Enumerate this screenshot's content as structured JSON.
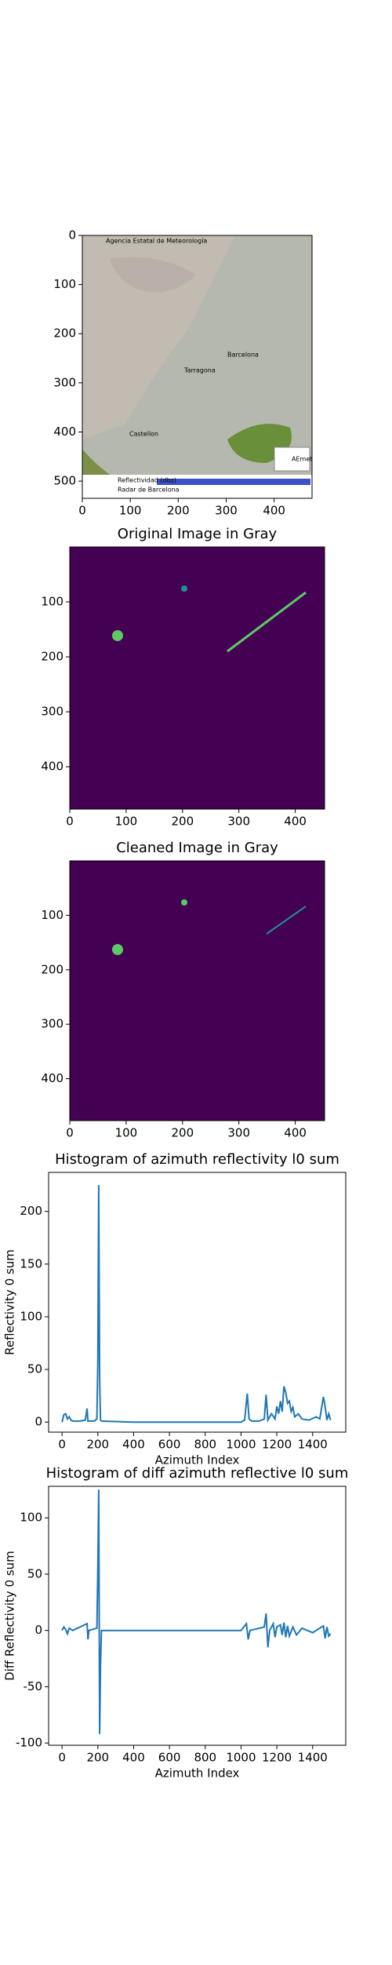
{
  "chart_data": [
    {
      "type": "image",
      "annotations": [
        "Agencia Estatal de Meteorología",
        "Reflectividad (dbz)",
        "Radar de Barcelona",
        "Barcelona",
        "Tarragona",
        "Castellon",
        "AEmet"
      ],
      "xlim": [
        0,
        479
      ],
      "ylim": [
        535,
        0
      ],
      "xticks": [
        0,
        100,
        200,
        300,
        400
      ],
      "yticks": [
        0,
        100,
        200,
        300,
        400,
        500
      ]
    },
    {
      "type": "image",
      "title": "Original Image in Gray",
      "xlim": [
        0,
        452
      ],
      "ylim": [
        477,
        0
      ],
      "xticks": [
        0,
        100,
        200,
        300,
        400
      ],
      "yticks": [
        100,
        200,
        300,
        400
      ]
    },
    {
      "type": "image",
      "title": "Cleaned Image in Gray",
      "xlim": [
        0,
        452
      ],
      "ylim": [
        477,
        0
      ],
      "xticks": [
        0,
        100,
        200,
        300,
        400
      ],
      "yticks": [
        100,
        200,
        300,
        400
      ]
    },
    {
      "type": "line",
      "title": "Histogram of azimuth reflectivity l0 sum",
      "xlabel": "Azimuth Index",
      "ylabel": "Reflectivity 0 sum",
      "xlim": [
        -75,
        1585
      ],
      "ylim": [
        -9.5,
        237
      ],
      "xticks": [
        0,
        200,
        400,
        600,
        800,
        1000,
        1200,
        1400
      ],
      "yticks": [
        0,
        50,
        100,
        150,
        200
      ],
      "series": [
        {
          "color": "#1f77b4",
          "x": [
            0,
            10,
            20,
            30,
            40,
            50,
            60,
            100,
            130,
            140,
            145,
            180,
            195,
            200,
            205,
            210,
            215,
            220,
            400,
            800,
            1000,
            1020,
            1035,
            1045,
            1060,
            1100,
            1130,
            1140,
            1150,
            1170,
            1190,
            1200,
            1210,
            1220,
            1230,
            1240,
            1250,
            1260,
            1270,
            1280,
            1290,
            1300,
            1320,
            1340,
            1380,
            1420,
            1440,
            1460,
            1470,
            1480,
            1490,
            1500
          ],
          "values": [
            0,
            7,
            8,
            3,
            5,
            2,
            1,
            1,
            2,
            13,
            1,
            1,
            3,
            60,
            225,
            40,
            2,
            1,
            0,
            0,
            0,
            2,
            27,
            3,
            1,
            1,
            3,
            26,
            2,
            8,
            3,
            15,
            8,
            20,
            10,
            34,
            28,
            18,
            20,
            10,
            14,
            5,
            8,
            3,
            2,
            5,
            3,
            24,
            15,
            2,
            8,
            2
          ]
        }
      ]
    },
    {
      "type": "line",
      "title": "Histogram of diff azimuth reflective l0 sum",
      "xlabel": "Azimuth Index",
      "ylabel": "Diff Reflectivity 0 sum",
      "xlim": [
        -75,
        1585
      ],
      "ylim": [
        -102,
        128
      ],
      "xticks": [
        0,
        200,
        400,
        600,
        800,
        1000,
        1200,
        1400
      ],
      "yticks": [
        -100,
        -50,
        0,
        50,
        100
      ],
      "series": [
        {
          "color": "#1f77b4",
          "x": [
            0,
            10,
            20,
            30,
            40,
            60,
            140,
            145,
            150,
            195,
            200,
            205,
            210,
            215,
            220,
            1000,
            1030,
            1040,
            1050,
            1130,
            1140,
            1150,
            1160,
            1180,
            1190,
            1200,
            1220,
            1230,
            1240,
            1250,
            1260,
            1270,
            1290,
            1310,
            1340,
            1400,
            1460,
            1470,
            1480,
            1490,
            1500
          ],
          "values": [
            0,
            3,
            1,
            -3,
            2,
            0,
            6,
            -8,
            0,
            2,
            55,
            125,
            -92,
            -30,
            0,
            0,
            6,
            -8,
            0,
            3,
            15,
            -15,
            0,
            6,
            -6,
            3,
            5,
            -4,
            7,
            -6,
            4,
            -5,
            3,
            -4,
            2,
            -2,
            4,
            -7,
            3,
            -5,
            -3
          ]
        }
      ]
    }
  ]
}
